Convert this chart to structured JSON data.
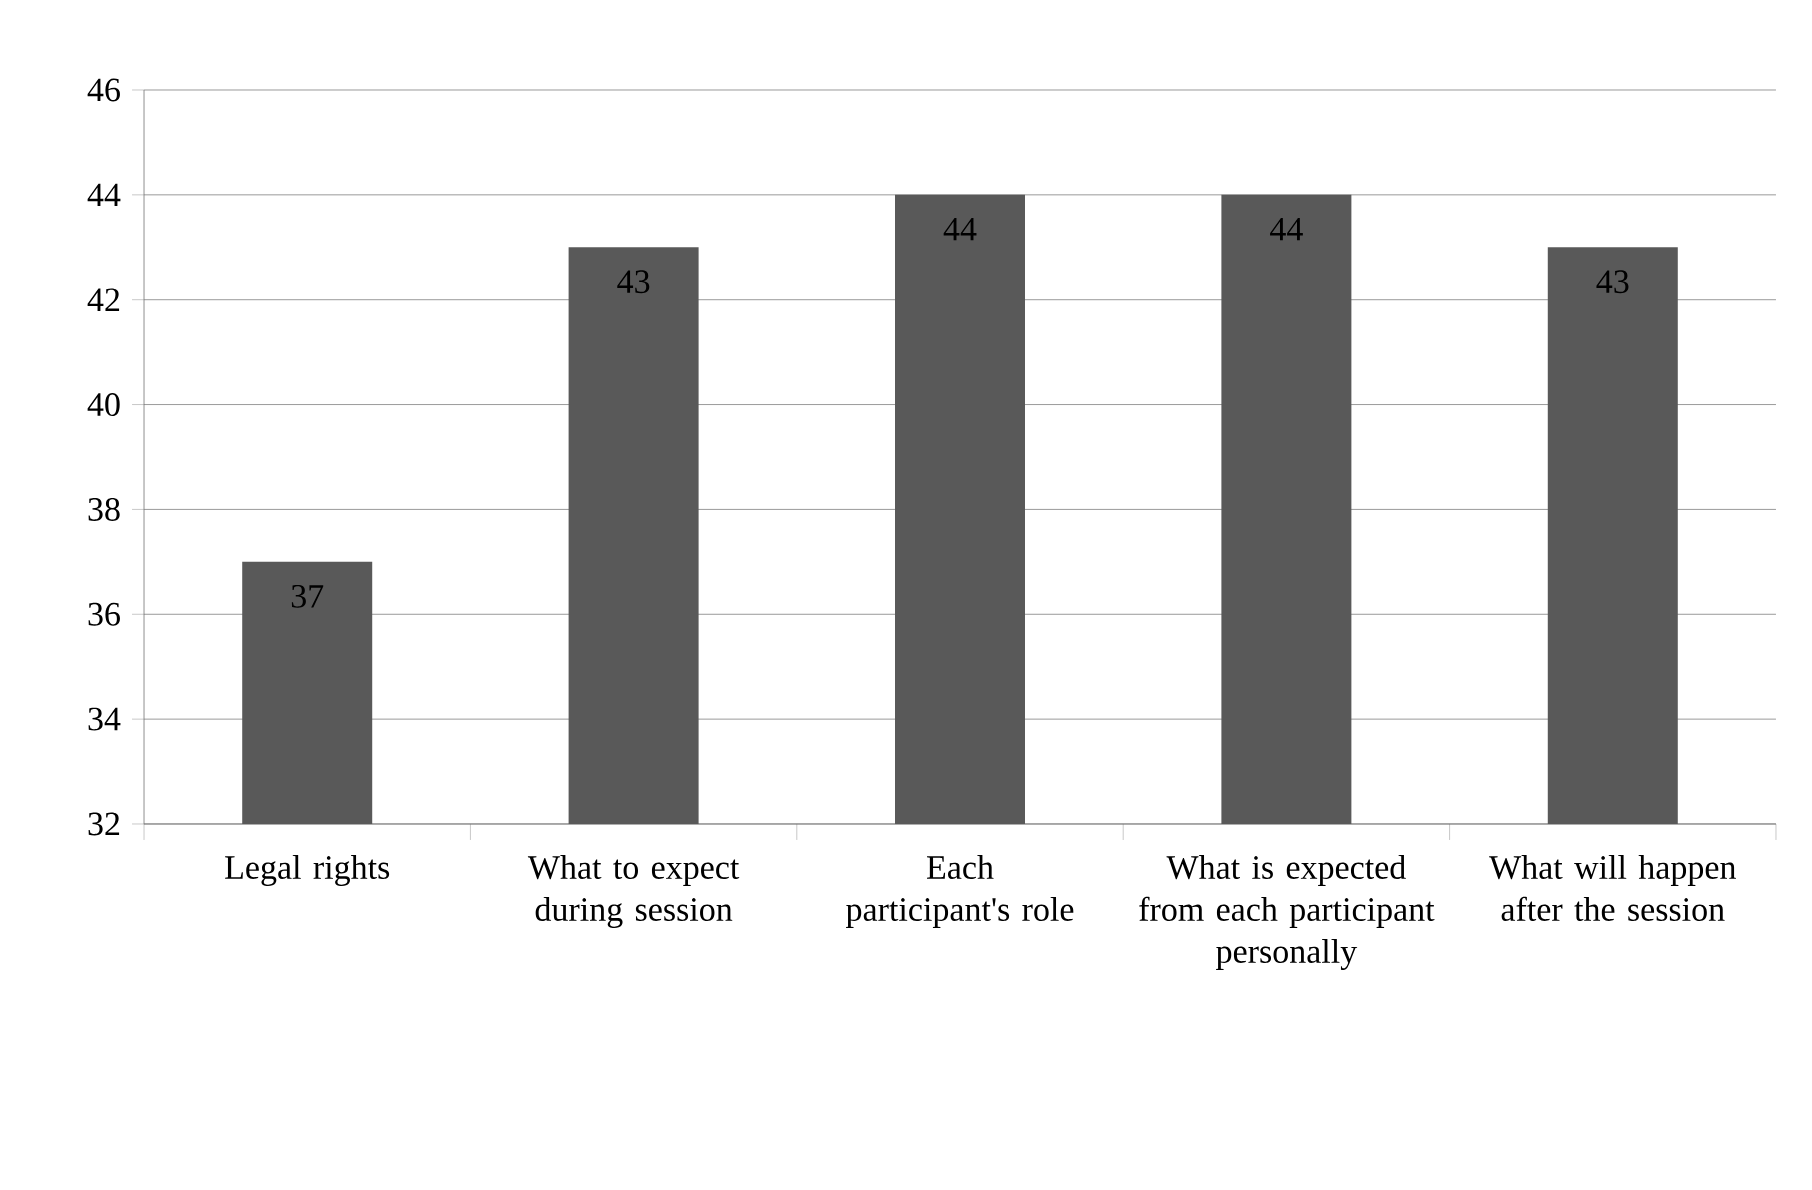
{
  "chart_data": {
    "type": "bar",
    "categories": [
      "Legal rights",
      "What to expect during session",
      "Each participant's role",
      "What is expected from each participant personally",
      "What will happen after the session"
    ],
    "values": [
      37,
      43,
      44,
      44,
      43
    ],
    "color": "#595959",
    "ylim": [
      32,
      46
    ],
    "yticks": [
      32,
      34,
      36,
      38,
      40,
      42,
      44,
      46
    ],
    "grid": "y",
    "data_labels": true
  }
}
